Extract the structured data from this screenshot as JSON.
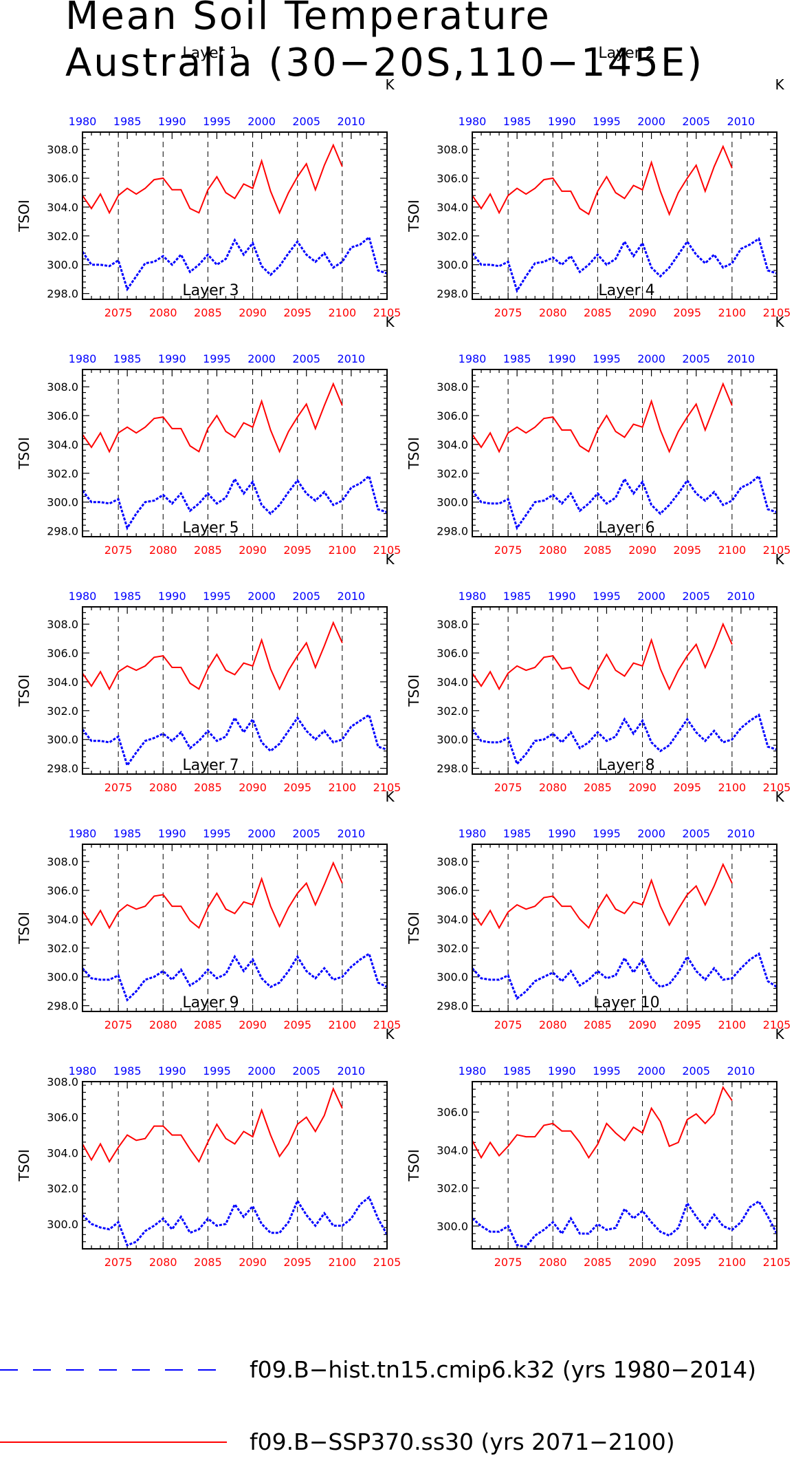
{
  "title": [
    "Mean Soil Temperature",
    "Australia (30−20S,110−145E)"
  ],
  "unit_label": "K",
  "ylabel": "TSOI",
  "legend": [
    {
      "label": "f09.B−hist.tn15.cmip6.k32 (yrs 1980−2014)",
      "color": "#0000ff",
      "style": "dashed"
    },
    {
      "label": "f09.B−SSP370.ss30 (yrs 2071−2100)",
      "color": "#ff0000",
      "style": "solid"
    }
  ],
  "colors": {
    "historical": "#0000ff",
    "future": "#ff0000",
    "axis": "#000000"
  },
  "chart_data": {
    "type": "line",
    "bottom_axis": {
      "range": [
        2071,
        2105
      ],
      "ticks": [
        "2075",
        "2080",
        "2085",
        "2090",
        "2095",
        "2100",
        "2105"
      ],
      "color": "#ff0000"
    },
    "top_axis": {
      "range": [
        1980,
        2014
      ],
      "ticks": [
        "1980",
        "1985",
        "1990",
        "1995",
        "2000",
        "2005",
        "2010"
      ],
      "color": "#0000ff"
    },
    "grid": "vertical dashed lines at 2075, 2080, 2085, 2090, 2095, 2100",
    "legend_placement": "bottom",
    "panels": [
      {
        "title": "Layer 1",
        "ylim": [
          297.6,
          309.2
        ],
        "yticks": [
          "298.0",
          "300.0",
          "302.0",
          "304.0",
          "306.0",
          "308.0"
        ],
        "series": [
          {
            "years": "2071-2100",
            "values": [
              304.8,
              303.9,
              304.9,
              303.6,
              304.8,
              305.3,
              304.9,
              305.3,
              305.9,
              306.0,
              305.2,
              305.2,
              303.9,
              303.6,
              305.2,
              306.1,
              305.0,
              304.6,
              305.6,
              305.3,
              307.2,
              305.1,
              303.6,
              305.0,
              306.1,
              307.0,
              305.2,
              306.9,
              308.3,
              306.8
            ]
          },
          {
            "years": "1980-2014",
            "values": [
              300.9,
              300.0,
              300.0,
              299.9,
              300.3,
              298.3,
              299.2,
              300.1,
              300.2,
              300.6,
              300.0,
              300.7,
              299.5,
              300.0,
              300.7,
              300.0,
              300.4,
              301.7,
              300.7,
              301.5,
              299.9,
              299.3,
              299.9,
              300.8,
              301.6,
              300.7,
              300.2,
              300.8,
              299.8,
              300.2,
              301.2,
              301.4,
              301.9,
              299.6,
              299.4
            ]
          }
        ]
      },
      {
        "title": "Layer 2",
        "ylim": [
          297.6,
          309.2
        ],
        "yticks": [
          "298.0",
          "300.0",
          "302.0",
          "304.0",
          "306.0",
          "308.0"
        ],
        "series": [
          {
            "years": "2071-2100",
            "values": [
              304.8,
              303.9,
              304.9,
              303.6,
              304.8,
              305.3,
              304.9,
              305.3,
              305.9,
              306.0,
              305.1,
              305.1,
              303.9,
              303.5,
              305.1,
              306.1,
              305.0,
              304.6,
              305.5,
              305.2,
              307.1,
              305.1,
              303.5,
              305.0,
              306.0,
              306.9,
              305.1,
              306.8,
              308.2,
              306.7
            ]
          },
          {
            "years": "1980-2014",
            "values": [
              300.8,
              300.0,
              300.0,
              299.9,
              300.2,
              298.2,
              299.2,
              300.1,
              300.2,
              300.5,
              300.0,
              300.6,
              299.5,
              300.0,
              300.7,
              300.0,
              300.4,
              301.6,
              300.6,
              301.5,
              299.8,
              299.2,
              299.8,
              300.7,
              301.6,
              300.7,
              300.1,
              300.7,
              299.8,
              300.1,
              301.1,
              301.4,
              301.8,
              299.6,
              299.4
            ]
          }
        ]
      },
      {
        "title": "Layer 3",
        "ylim": [
          297.6,
          309.2
        ],
        "yticks": [
          "298.0",
          "300.0",
          "302.0",
          "304.0",
          "306.0",
          "308.0"
        ],
        "series": [
          {
            "years": "2071-2100",
            "values": [
              304.7,
              303.8,
              304.8,
              303.5,
              304.8,
              305.2,
              304.8,
              305.2,
              305.8,
              305.9,
              305.1,
              305.1,
              303.9,
              303.5,
              305.1,
              306.0,
              304.9,
              304.5,
              305.5,
              305.2,
              307.0,
              305.0,
              303.5,
              304.9,
              305.9,
              306.8,
              305.1,
              306.7,
              308.2,
              306.7
            ]
          },
          {
            "years": "1980-2014",
            "values": [
              300.8,
              300.0,
              300.0,
              299.9,
              300.2,
              298.2,
              299.2,
              300.0,
              300.1,
              300.5,
              299.9,
              300.6,
              299.4,
              299.9,
              300.6,
              299.9,
              300.3,
              301.6,
              300.6,
              301.4,
              299.8,
              299.2,
              299.8,
              300.7,
              301.5,
              300.6,
              300.1,
              300.7,
              299.8,
              300.1,
              301.0,
              301.3,
              301.8,
              299.5,
              299.3
            ]
          }
        ]
      },
      {
        "title": "Layer 4",
        "ylim": [
          297.6,
          309.2
        ],
        "yticks": [
          "298.0",
          "300.0",
          "302.0",
          "304.0",
          "306.0",
          "308.0"
        ],
        "series": [
          {
            "years": "2071-2100",
            "values": [
              304.7,
              303.8,
              304.8,
              303.5,
              304.8,
              305.2,
              304.8,
              305.2,
              305.8,
              305.9,
              305.0,
              305.0,
              303.9,
              303.5,
              305.0,
              306.0,
              304.9,
              304.5,
              305.4,
              305.2,
              307.0,
              305.0,
              303.5,
              304.9,
              305.9,
              306.8,
              305.0,
              306.6,
              308.2,
              306.7
            ]
          },
          {
            "years": "1980-2014",
            "values": [
              300.8,
              300.0,
              299.9,
              299.9,
              300.2,
              298.2,
              299.1,
              300.0,
              300.1,
              300.5,
              299.9,
              300.6,
              299.4,
              299.9,
              300.6,
              299.9,
              300.3,
              301.6,
              300.6,
              301.4,
              299.8,
              299.2,
              299.8,
              300.6,
              301.5,
              300.6,
              300.1,
              300.7,
              299.8,
              300.1,
              301.0,
              301.3,
              301.8,
              299.5,
              299.3
            ]
          }
        ]
      },
      {
        "title": "Layer 5",
        "ylim": [
          297.6,
          309.2
        ],
        "yticks": [
          "298.0",
          "300.0",
          "302.0",
          "304.0",
          "306.0",
          "308.0"
        ],
        "series": [
          {
            "years": "2071-2100",
            "values": [
              304.6,
              303.7,
              304.7,
              303.5,
              304.7,
              305.1,
              304.8,
              305.1,
              305.7,
              305.8,
              305.0,
              305.0,
              303.9,
              303.5,
              304.9,
              305.9,
              304.8,
              304.5,
              305.3,
              305.1,
              306.9,
              304.9,
              303.5,
              304.8,
              305.8,
              306.7,
              305.0,
              306.5,
              308.1,
              306.7
            ]
          },
          {
            "years": "1980-2014",
            "values": [
              300.7,
              299.9,
              299.9,
              299.8,
              300.2,
              298.2,
              299.1,
              299.9,
              300.1,
              300.4,
              299.9,
              300.5,
              299.4,
              299.9,
              300.6,
              299.9,
              300.2,
              301.5,
              300.5,
              301.4,
              299.8,
              299.2,
              299.7,
              300.6,
              301.5,
              300.6,
              300.0,
              300.6,
              299.8,
              300.0,
              300.9,
              301.3,
              301.7,
              299.5,
              299.3
            ]
          }
        ]
      },
      {
        "title": "Layer 6",
        "ylim": [
          297.6,
          309.2
        ],
        "yticks": [
          "298.0",
          "300.0",
          "302.0",
          "304.0",
          "306.0",
          "308.0"
        ],
        "series": [
          {
            "years": "2071-2100",
            "values": [
              304.6,
              303.7,
              304.7,
              303.5,
              304.6,
              305.1,
              304.8,
              305.0,
              305.7,
              305.8,
              304.9,
              305.0,
              303.9,
              303.5,
              304.8,
              305.9,
              304.8,
              304.4,
              305.3,
              305.1,
              306.9,
              304.9,
              303.5,
              304.8,
              305.8,
              306.6,
              305.0,
              306.4,
              308.0,
              306.6
            ]
          },
          {
            "years": "1980-2014",
            "values": [
              300.7,
              299.9,
              299.8,
              299.8,
              300.1,
              298.3,
              299.0,
              299.9,
              300.0,
              300.4,
              299.8,
              300.5,
              299.4,
              299.8,
              300.5,
              299.9,
              300.2,
              301.4,
              300.4,
              301.3,
              299.8,
              299.2,
              299.6,
              300.5,
              301.4,
              300.5,
              299.9,
              300.6,
              299.8,
              300.0,
              300.8,
              301.3,
              301.7,
              299.5,
              299.3
            ]
          }
        ]
      },
      {
        "title": "Layer 7",
        "ylim": [
          297.6,
          309.2
        ],
        "yticks": [
          "298.0",
          "300.0",
          "302.0",
          "304.0",
          "306.0",
          "308.0"
        ],
        "series": [
          {
            "years": "2071-2100",
            "values": [
              304.6,
              303.6,
              304.6,
              303.4,
              304.5,
              305.0,
              304.7,
              304.9,
              305.6,
              305.7,
              304.9,
              304.9,
              303.9,
              303.4,
              304.8,
              305.8,
              304.7,
              304.4,
              305.2,
              305.0,
              306.8,
              304.9,
              303.5,
              304.8,
              305.8,
              306.5,
              305.0,
              306.4,
              307.9,
              306.5
            ]
          },
          {
            "years": "1980-2014",
            "values": [
              300.6,
              299.9,
              299.8,
              299.8,
              300.1,
              298.4,
              299.0,
              299.8,
              300.0,
              300.4,
              299.8,
              300.5,
              299.4,
              299.8,
              300.5,
              299.9,
              300.2,
              301.4,
              300.4,
              301.2,
              299.9,
              299.3,
              299.6,
              300.4,
              301.4,
              300.4,
              299.9,
              300.6,
              299.8,
              300.0,
              300.7,
              301.2,
              301.6,
              299.6,
              299.3
            ]
          }
        ]
      },
      {
        "title": "Layer 8",
        "ylim": [
          297.6,
          309.2
        ],
        "yticks": [
          "298.0",
          "300.0",
          "302.0",
          "304.0",
          "306.0",
          "308.0"
        ],
        "series": [
          {
            "years": "2071-2100",
            "values": [
              304.5,
              303.6,
              304.6,
              303.4,
              304.5,
              305.0,
              304.7,
              304.9,
              305.5,
              305.6,
              304.9,
              304.9,
              304.0,
              303.4,
              304.7,
              305.7,
              304.7,
              304.4,
              305.2,
              305.0,
              306.7,
              304.9,
              303.6,
              304.7,
              305.7,
              306.3,
              305.0,
              306.3,
              307.8,
              306.5
            ]
          },
          {
            "years": "1980-2014",
            "values": [
              300.6,
              299.9,
              299.8,
              299.8,
              300.1,
              298.5,
              299.0,
              299.7,
              300.0,
              300.3,
              299.7,
              300.4,
              299.4,
              299.8,
              300.4,
              299.9,
              300.1,
              301.3,
              300.3,
              301.2,
              299.9,
              299.3,
              299.5,
              300.3,
              301.4,
              300.4,
              299.8,
              300.6,
              299.8,
              299.9,
              300.6,
              301.2,
              301.6,
              299.7,
              299.3
            ]
          }
        ]
      },
      {
        "title": "Layer 9",
        "ylim": [
          298.6,
          308.0
        ],
        "yticks": [
          "300.0",
          "302.0",
          "304.0",
          "306.0",
          "308.0"
        ],
        "series": [
          {
            "years": "2071-2100",
            "values": [
              304.5,
              303.6,
              304.5,
              303.5,
              304.3,
              305.0,
              304.7,
              304.8,
              305.5,
              305.5,
              305.0,
              305.0,
              304.2,
              303.5,
              304.6,
              305.6,
              304.8,
              304.5,
              305.2,
              304.9,
              306.4,
              305.0,
              303.8,
              304.5,
              305.6,
              306.0,
              305.2,
              306.1,
              307.6,
              306.5
            ]
          },
          {
            "years": "1980-2014",
            "values": [
              300.5,
              300.0,
              299.8,
              299.7,
              300.1,
              298.8,
              299.0,
              299.6,
              299.9,
              300.3,
              299.7,
              300.4,
              299.5,
              299.7,
              300.3,
              299.9,
              300.0,
              301.1,
              300.4,
              301.0,
              300.0,
              299.5,
              299.5,
              300.1,
              301.3,
              300.5,
              299.9,
              300.6,
              299.9,
              299.9,
              300.3,
              301.1,
              301.5,
              300.3,
              299.4
            ]
          }
        ]
      },
      {
        "title": "Layer 10",
        "ylim": [
          298.8,
          307.6
        ],
        "yticks": [
          "300.0",
          "302.0",
          "304.0",
          "306.0"
        ],
        "series": [
          {
            "years": "2071-2100",
            "values": [
              304.5,
              303.6,
              304.4,
              303.7,
              304.2,
              304.8,
              304.7,
              304.7,
              305.3,
              305.4,
              305.0,
              305.0,
              304.4,
              303.6,
              304.3,
              305.4,
              304.9,
              304.5,
              305.2,
              304.9,
              306.2,
              305.5,
              304.2,
              304.4,
              305.6,
              305.9,
              305.4,
              305.9,
              307.3,
              306.6
            ]
          },
          {
            "years": "1980-2014",
            "values": [
              300.4,
              300.0,
              299.7,
              299.7,
              300.0,
              299.0,
              298.9,
              299.5,
              299.8,
              300.2,
              299.6,
              300.4,
              299.6,
              299.6,
              300.1,
              299.8,
              299.9,
              300.9,
              300.4,
              300.8,
              300.2,
              299.7,
              299.5,
              299.9,
              301.2,
              300.5,
              299.9,
              300.6,
              300.0,
              299.8,
              300.2,
              301.0,
              301.3,
              300.5,
              299.6
            ]
          }
        ]
      }
    ]
  }
}
